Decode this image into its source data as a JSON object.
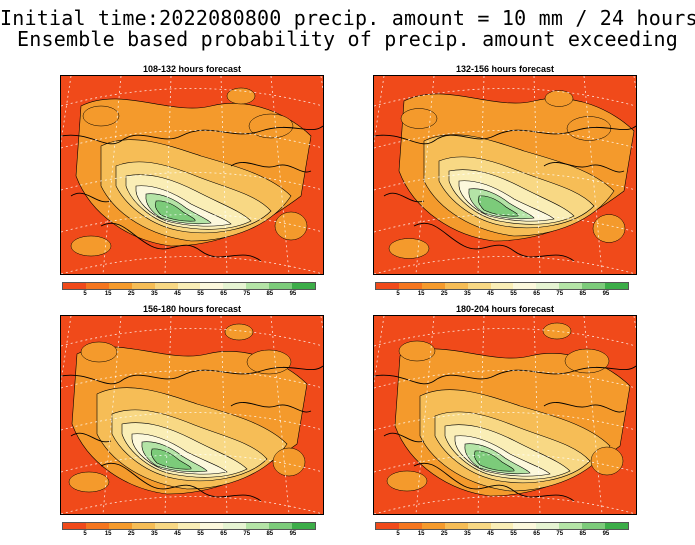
{
  "title_line1": "Initial time:2022080800 precip. amount = 10 mm / 24 hours",
  "title_line2": "Ensemble based probability of precip. amount exceeding",
  "panels": [
    {
      "title": "108-132 hours forecast"
    },
    {
      "title": "132-156 hours forecast"
    },
    {
      "title": "156-180 hours forecast"
    },
    {
      "title": "180-204 hours forecast"
    }
  ],
  "colorbar": {
    "colors": [
      "#f04a1a",
      "#f4761f",
      "#f49a2c",
      "#f6bd56",
      "#f8d884",
      "#faeeb6",
      "#fcf8dc",
      "#e6f4d2",
      "#b4e4a6",
      "#7ccb7a",
      "#3cad48"
    ],
    "labels": [
      "5",
      "15",
      "25",
      "35",
      "45",
      "55",
      "65",
      "75",
      "85",
      "95"
    ]
  },
  "colors": {
    "high_prob": "#3cad48",
    "low_prob": "#f04a1a"
  }
}
